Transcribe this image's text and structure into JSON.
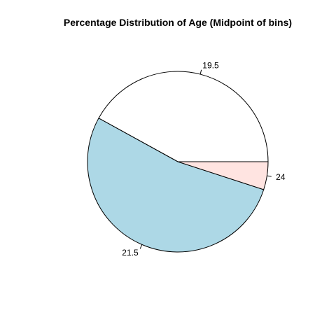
{
  "chart_data": {
    "type": "pie",
    "title": "Percentage Distribution of Age (Midpoint of bins)",
    "categories": [
      "19.5",
      "21.5",
      "24"
    ],
    "values": [
      42,
      53,
      5
    ],
    "colors": [
      "#ffffff",
      "#add8e6",
      "#ffe4e1"
    ],
    "start_angle_deg": 0,
    "direction": "counterclockwise"
  }
}
